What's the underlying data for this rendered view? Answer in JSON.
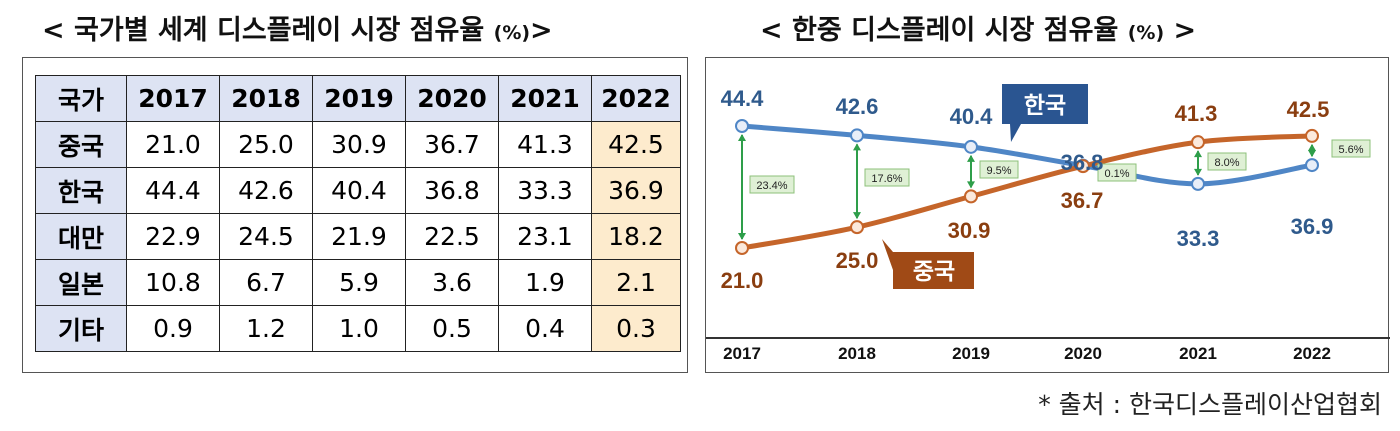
{
  "left_title": {
    "main": "< 국가별 세계 디스플레이 시장 점유율",
    "unit": "(%)",
    "close": ">"
  },
  "right_title": {
    "main": "< 한중 디스플레이 시장 점유율",
    "unit": "(%)",
    "close": " >"
  },
  "table": {
    "headers": [
      "국가",
      "2017",
      "2018",
      "2019",
      "2020",
      "2021",
      "2022"
    ],
    "rows": [
      {
        "country": "중국",
        "values": [
          "21.0",
          "25.0",
          "30.9",
          "36.7",
          "41.3",
          "42.5"
        ]
      },
      {
        "country": "한국",
        "values": [
          "44.4",
          "42.6",
          "40.4",
          "36.8",
          "33.3",
          "36.9"
        ]
      },
      {
        "country": "대만",
        "values": [
          "22.9",
          "24.5",
          "21.9",
          "22.5",
          "23.1",
          "18.2"
        ]
      },
      {
        "country": "일본",
        "values": [
          "10.8",
          "6.7",
          "5.9",
          "3.6",
          "1.9",
          "2.1"
        ]
      },
      {
        "country": "기타",
        "values": [
          "0.9",
          "1.2",
          "1.0",
          "0.5",
          "0.4",
          "0.3"
        ]
      }
    ],
    "highlight_color": "#fdebcd",
    "header_color": "#dde3f3"
  },
  "chart_data": {
    "type": "line",
    "title": "< 한중 디스플레이 시장 점유율 (%) >",
    "categories": [
      "2017",
      "2018",
      "2019",
      "2020",
      "2021",
      "2022"
    ],
    "series": [
      {
        "name": "한국",
        "values": [
          44.4,
          42.6,
          40.4,
          36.8,
          33.3,
          36.9
        ],
        "color": "#4f86c6",
        "label_color": "#2f5a8c"
      },
      {
        "name": "중국",
        "values": [
          21.0,
          25.0,
          30.9,
          36.7,
          41.3,
          42.5
        ],
        "color": "#c5652a",
        "label_color": "#8a3e10"
      }
    ],
    "value_labels": {
      "한국": [
        "44.4",
        "42.6",
        "40.4",
        "36.8",
        "33.3",
        "36.9"
      ],
      "중국": [
        "21.0",
        "25.0",
        "30.9",
        "36.7",
        "41.3",
        "42.5"
      ]
    },
    "gaps": [
      "23.4%",
      "17.6%",
      "9.5%",
      "0.1%",
      "8.0%",
      "5.6%"
    ],
    "ylim": [
      16,
      50
    ],
    "legend_box_color_korea": "#2a5591",
    "legend_box_color_china": "#a04a16"
  },
  "source": "* 출처 : 한국디스플레이산업협회"
}
